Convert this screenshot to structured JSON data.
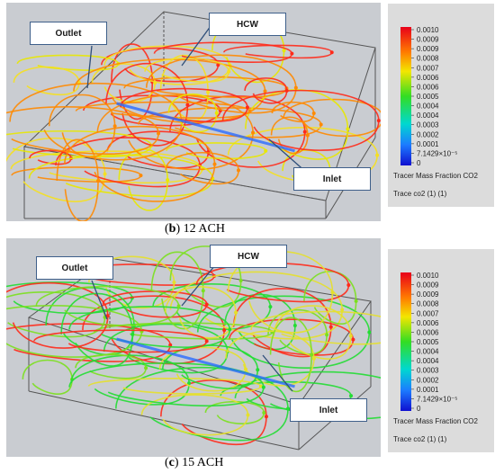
{
  "panels": [
    {
      "caption_letter": "b",
      "caption_text": "12 ACH",
      "labels": {
        "outlet": "Outlet",
        "hcw": "HCW",
        "inlet": "Inlet"
      },
      "legend": {
        "ticks": [
          "0.0010",
          "0.0009",
          "0.0009",
          "0.0008",
          "0.0007",
          "0.0006",
          "0.0006",
          "0.0005",
          "0.0004",
          "0.0004",
          "0.0003",
          "0.0002",
          "0.0001",
          "7.1429×10⁻⁵",
          "0"
        ],
        "title": "Tracer Mass Fraction CO2",
        "subtitle": "Trace co2 (1) (1)"
      },
      "dominant_colors": [
        "#ff2a1a",
        "#ff8a00",
        "#f5e020",
        "#e8e800"
      ]
    },
    {
      "caption_letter": "c",
      "caption_text": "15 ACH",
      "labels": {
        "outlet": "Outlet",
        "hcw": "HCW",
        "inlet": "Inlet"
      },
      "legend": {
        "ticks": [
          "0.0010",
          "0.0009",
          "0.0009",
          "0.0008",
          "0.0007",
          "0.0006",
          "0.0006",
          "0.0005",
          "0.0004",
          "0.0004",
          "0.0003",
          "0.0002",
          "0.0001",
          "7.1429×10⁻⁵",
          "0"
        ],
        "title": "Tracer Mass Fraction CO2",
        "subtitle": "Trace co2 (1) (1)"
      },
      "dominant_colors": [
        "#22dd33",
        "#7be01e",
        "#e5e02a",
        "#ff2a1a"
      ]
    }
  ]
}
